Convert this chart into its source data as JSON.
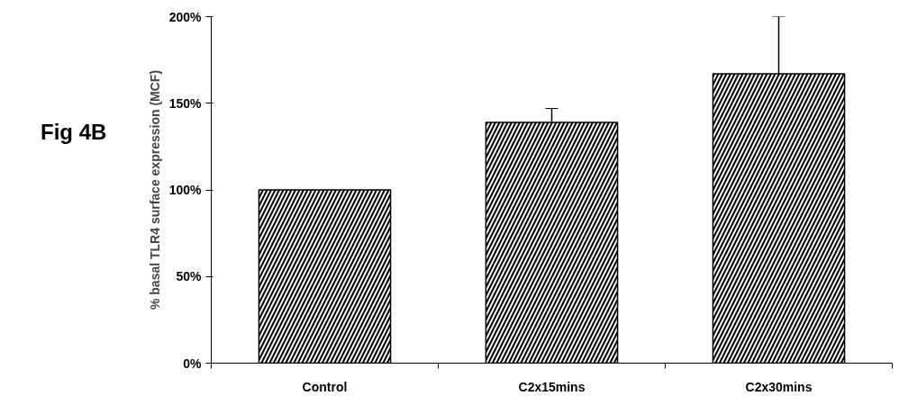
{
  "chart_data": {
    "type": "bar",
    "annotations": [
      "Fig 4B"
    ],
    "ylabel": "% basal TLR4 surface expression (MCF)",
    "categories": [
      "Control",
      "C2x15mins",
      "C2x30mins"
    ],
    "values": [
      100,
      139,
      167
    ],
    "errors": [
      null,
      8,
      33
    ],
    "color": "#ffffff",
    "ylim": [
      0,
      200
    ],
    "yticks": [
      {
        "value": 0,
        "label": "0%"
      },
      {
        "value": 50,
        "label": "50%"
      },
      {
        "value": 100,
        "label": "100%"
      },
      {
        "value": 150,
        "label": "150%"
      },
      {
        "value": 200,
        "label": "200%"
      }
    ],
    "grid": false
  }
}
